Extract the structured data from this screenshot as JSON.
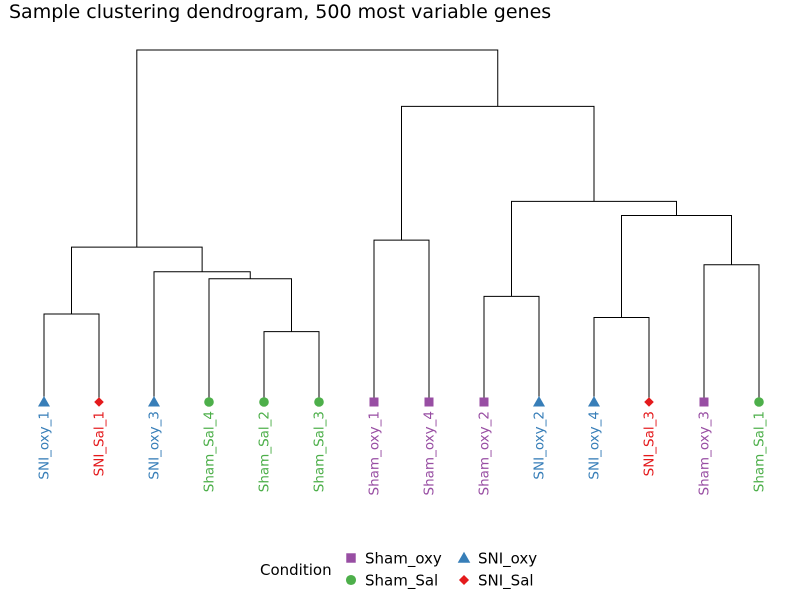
{
  "chart_data": {
    "type": "dendrogram",
    "title": "Sample clustering dendrogram, 500 most variable genes",
    "leaves": [
      {
        "label": "SNI_oxy_1",
        "condition": "SNI_oxy"
      },
      {
        "label": "SNI_Sal_1",
        "condition": "SNI_Sal"
      },
      {
        "label": "SNI_oxy_3",
        "condition": "SNI_oxy"
      },
      {
        "label": "Sham_Sal_4",
        "condition": "Sham_Sal"
      },
      {
        "label": "Sham_Sal_2",
        "condition": "Sham_Sal"
      },
      {
        "label": "Sham_Sal_3",
        "condition": "Sham_Sal"
      },
      {
        "label": "Sham_oxy_1",
        "condition": "Sham_oxy"
      },
      {
        "label": "Sham_oxy_4",
        "condition": "Sham_oxy"
      },
      {
        "label": "Sham_oxy_2",
        "condition": "Sham_oxy"
      },
      {
        "label": "SNI_oxy_2",
        "condition": "SNI_oxy"
      },
      {
        "label": "SNI_oxy_4",
        "condition": "SNI_oxy"
      },
      {
        "label": "SNI_Sal_3",
        "condition": "SNI_Sal"
      },
      {
        "label": "Sham_oxy_3",
        "condition": "Sham_oxy"
      },
      {
        "label": "Sham_Sal_1",
        "condition": "Sham_Sal"
      }
    ],
    "merges": [
      {
        "a": "L0",
        "b": "L1",
        "height": 0.25
      },
      {
        "a": "L4",
        "b": "L5",
        "height": 0.2
      },
      {
        "a": "L3",
        "b": "M1",
        "height": 0.35
      },
      {
        "a": "L2",
        "b": "M2",
        "height": 0.37
      },
      {
        "a": "M0",
        "b": "M3",
        "height": 0.44
      },
      {
        "a": "L6",
        "b": "L7",
        "height": 0.46
      },
      {
        "a": "L8",
        "b": "L9",
        "height": 0.3
      },
      {
        "a": "L10",
        "b": "L11",
        "height": 0.24
      },
      {
        "a": "L12",
        "b": "L13",
        "height": 0.39
      },
      {
        "a": "M7",
        "b": "M8",
        "height": 0.53
      },
      {
        "a": "M6",
        "b": "M9",
        "height": 0.57
      },
      {
        "a": "M5",
        "b": "M10",
        "height": 0.84
      },
      {
        "a": "M4",
        "b": "M11",
        "height": 1.0
      }
    ],
    "legend": {
      "title": "Condition",
      "position": "bottom",
      "entries": [
        "Sham_oxy",
        "Sham_Sal",
        "SNI_oxy",
        "SNI_Sal"
      ]
    },
    "colors": {
      "Sham_oxy": "#984EA3",
      "Sham_Sal": "#4DAF4A",
      "SNI_oxy": "#377EB8",
      "SNI_Sal": "#E41A1C",
      "branch": "#000000"
    },
    "markers": {
      "Sham_oxy": "square",
      "Sham_Sal": "circle",
      "SNI_oxy": "triangle",
      "SNI_Sal": "diamond"
    },
    "axes": "none",
    "grid": false
  }
}
